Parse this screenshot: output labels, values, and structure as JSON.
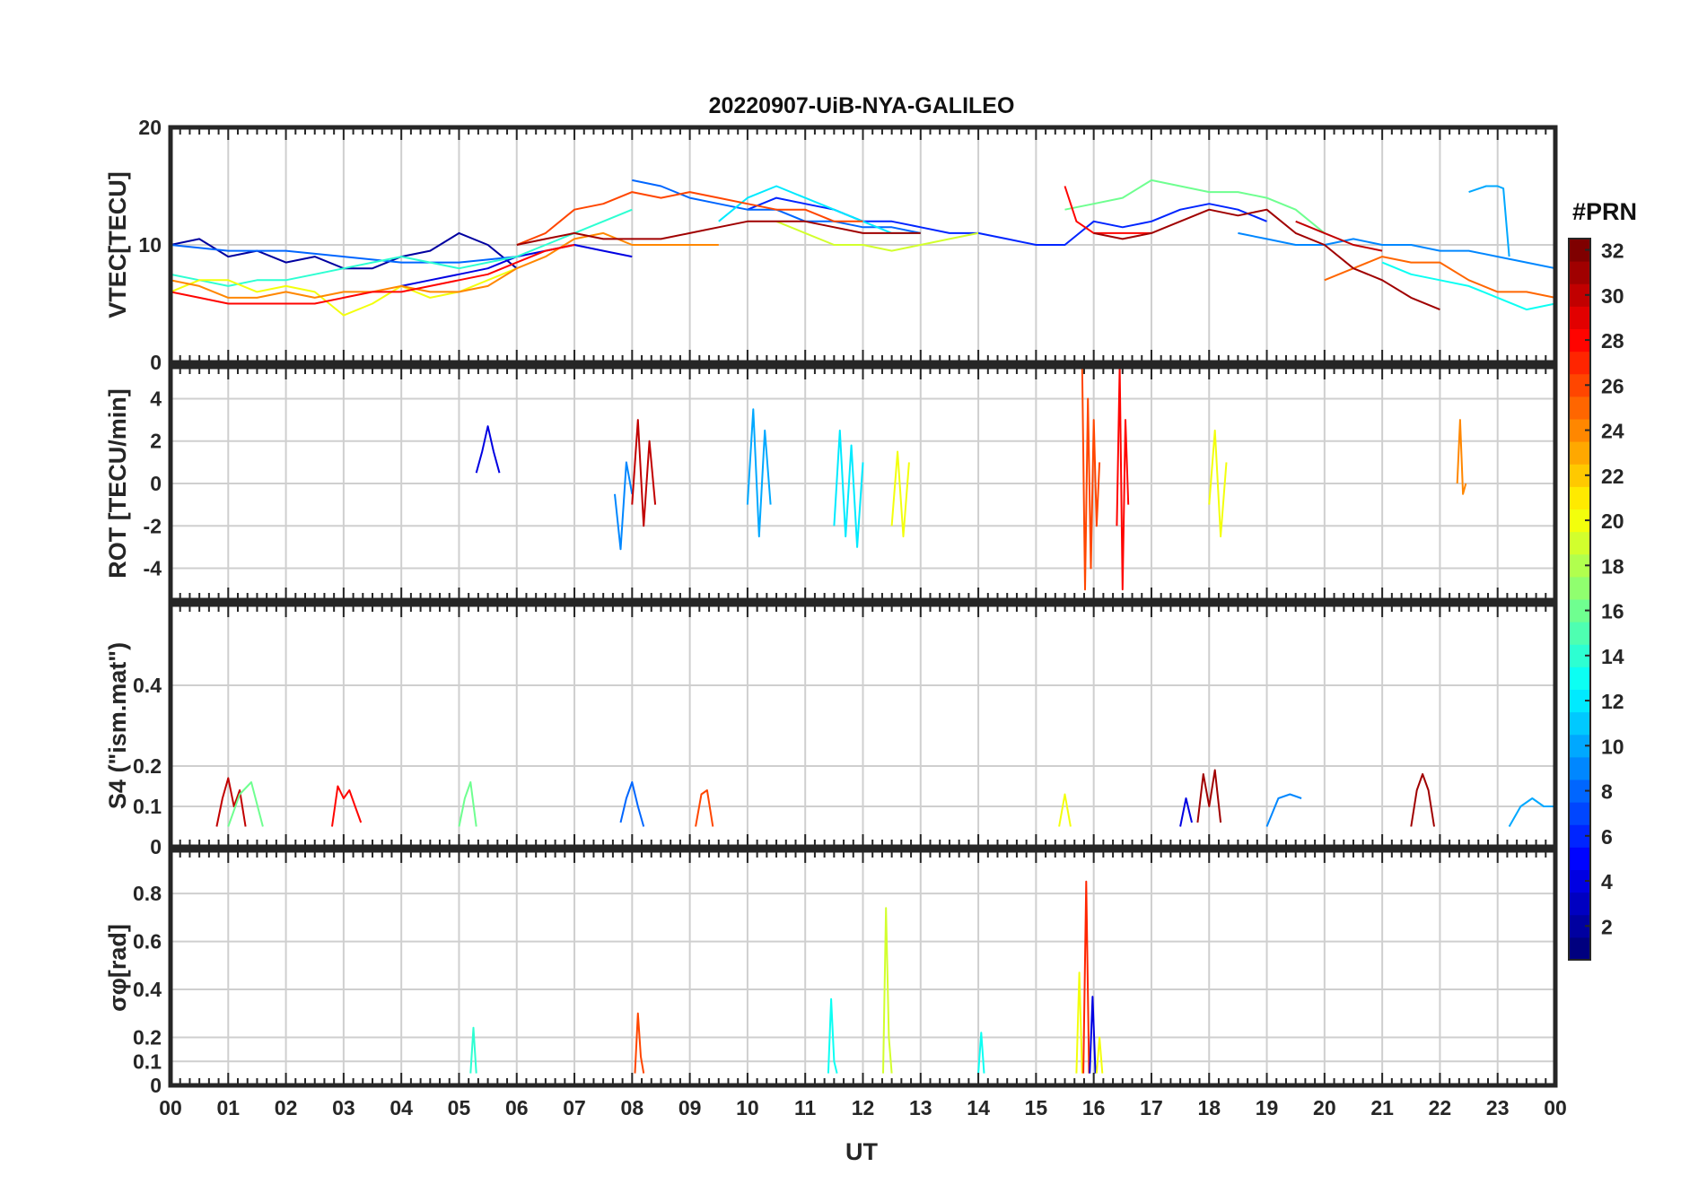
{
  "title": "20220907-UiB-NYA-GALILEO",
  "x_axis": {
    "label": "UT",
    "tick_labels": [
      "00",
      "01",
      "02",
      "03",
      "04",
      "05",
      "06",
      "07",
      "08",
      "09",
      "10",
      "11",
      "12",
      "13",
      "14",
      "15",
      "16",
      "17",
      "18",
      "19",
      "20",
      "21",
      "22",
      "23",
      "00"
    ]
  },
  "colorbar": {
    "title": "#PRN",
    "range": [
      1,
      32
    ],
    "tick_labels": [
      "2",
      "4",
      "6",
      "8",
      "10",
      "12",
      "14",
      "16",
      "18",
      "20",
      "22",
      "24",
      "26",
      "28",
      "30",
      "32"
    ],
    "colormap": "jet",
    "color_stops": [
      "#00007f",
      "#0000ff",
      "#007fff",
      "#00ffff",
      "#7fff7f",
      "#ffff00",
      "#ff7f00",
      "#ff0000",
      "#7f0000"
    ]
  },
  "chart_data": [
    {
      "type": "line",
      "panel": "vtec",
      "ylabel": "VTEC[TECU]",
      "ylim": [
        0,
        20
      ],
      "yticks": [
        0,
        10,
        20
      ],
      "grid": true,
      "xlim_hours": [
        0,
        24
      ],
      "series": [
        {
          "prn": 2,
          "x": [
            0,
            0.5,
            1,
            1.5,
            2,
            2.5,
            3,
            3.5,
            4,
            4.5,
            5,
            5.5,
            6
          ],
          "y": [
            10,
            10.5,
            9,
            9.5,
            8.5,
            9,
            8,
            8,
            9,
            9.5,
            11,
            10,
            8
          ]
        },
        {
          "prn": 4,
          "x": [
            4,
            4.5,
            5,
            5.5,
            6,
            6.5,
            7,
            7.5,
            8
          ],
          "y": [
            6.5,
            7,
            7.5,
            8,
            9,
            9.5,
            10,
            9.5,
            9
          ]
        },
        {
          "prn": 6,
          "x": [
            10,
            10.5,
            11,
            11.5,
            12,
            12.5,
            13,
            13.5,
            14,
            14.5,
            15,
            15.5,
            16,
            16.5,
            17,
            17.5,
            18,
            18.5,
            19
          ],
          "y": [
            13,
            14,
            13.5,
            13,
            12,
            12,
            11.5,
            11,
            11,
            10.5,
            10,
            10,
            12,
            11.5,
            12,
            13,
            13.5,
            13,
            12
          ]
        },
        {
          "prn": 8,
          "x": [
            0,
            1,
            2,
            3,
            4,
            5,
            6
          ],
          "y": [
            10,
            9.5,
            9.5,
            9,
            8.5,
            8.5,
            9
          ]
        },
        {
          "prn": 8,
          "x": [
            8,
            8.5,
            9,
            9.5,
            10,
            10.5,
            11,
            11.5,
            12,
            12.5,
            13
          ],
          "y": [
            15.5,
            15,
            14,
            13.5,
            13,
            13,
            12,
            12,
            11.5,
            11.5,
            11
          ]
        },
        {
          "prn": 9,
          "x": [
            18.5,
            19,
            19.5,
            20,
            20.5,
            21,
            21.5,
            22,
            22.5,
            23,
            23.5,
            24
          ],
          "y": [
            11,
            10.5,
            10,
            10,
            10.5,
            10,
            10,
            9.5,
            9.5,
            9,
            8.5,
            8
          ]
        },
        {
          "prn": 10,
          "x": [
            22.5,
            22.8,
            23,
            23.1,
            23.2
          ],
          "y": [
            14.5,
            15,
            15,
            14.8,
            9
          ]
        },
        {
          "prn": 12,
          "x": [
            9.5,
            10,
            10.5,
            11,
            11.5,
            12,
            12.5,
            13
          ],
          "y": [
            12,
            14,
            15,
            14,
            13,
            12,
            11,
            11
          ]
        },
        {
          "prn": 13,
          "x": [
            21,
            21.5,
            22,
            22.5,
            23,
            23.5,
            24
          ],
          "y": [
            8.5,
            7.5,
            7,
            6.5,
            5.5,
            4.5,
            5
          ]
        },
        {
          "prn": 14,
          "x": [
            0,
            0.5,
            1,
            1.5,
            2,
            2.5,
            3,
            3.5,
            4,
            4.5,
            5,
            5.5,
            6,
            6.5,
            7,
            7.5,
            8
          ],
          "y": [
            7.5,
            7,
            6.5,
            7,
            7,
            7.5,
            8,
            8.5,
            9,
            8.5,
            8,
            8.5,
            9,
            10,
            11,
            12,
            13
          ]
        },
        {
          "prn": 16,
          "x": [
            15.5,
            16,
            16.5,
            17,
            17.5,
            18,
            18.5,
            19,
            19.5,
            20
          ],
          "y": [
            13,
            13.5,
            14,
            15.5,
            15,
            14.5,
            14.5,
            14,
            13,
            11
          ]
        },
        {
          "prn": 19,
          "x": [
            10.5,
            11,
            11.5,
            12,
            12.5,
            13,
            13.5,
            14
          ],
          "y": [
            12,
            11,
            10,
            10,
            9.5,
            10,
            10.5,
            11
          ]
        },
        {
          "prn": 20,
          "x": [
            0,
            0.5,
            1,
            1.5,
            2,
            2.5,
            3,
            3.5,
            4,
            4.5,
            5,
            5.5,
            6
          ],
          "y": [
            6,
            7,
            7,
            6,
            6.5,
            6,
            4,
            5,
            6.5,
            5.5,
            6,
            7,
            8
          ]
        },
        {
          "prn": 24,
          "x": [
            0,
            0.5,
            1,
            1.5,
            2,
            2.5,
            3,
            3.5,
            4,
            4.5,
            5,
            5.5,
            6,
            6.5,
            7,
            7.5,
            8,
            8.5,
            9,
            9.5
          ],
          "y": [
            7,
            6.5,
            5.5,
            5.5,
            6,
            5.5,
            6,
            6,
            6.5,
            6,
            6,
            6.5,
            8,
            9,
            10.5,
            11,
            10,
            10,
            10,
            10
          ]
        },
        {
          "prn": 25,
          "x": [
            20,
            20.5,
            21,
            21.5,
            22,
            22.5,
            23,
            23.5,
            24
          ],
          "y": [
            7,
            8,
            9,
            8.5,
            8.5,
            7,
            6,
            6,
            5.5
          ]
        },
        {
          "prn": 26,
          "x": [
            6,
            6.5,
            7,
            7.5,
            8,
            8.5,
            9,
            9.5,
            10,
            10.5,
            11,
            11.5,
            12
          ],
          "y": [
            10,
            11,
            13,
            13.5,
            14.5,
            14,
            14.5,
            14,
            13.5,
            13,
            13,
            12,
            12
          ]
        },
        {
          "prn": 28,
          "x": [
            0,
            0.5,
            1,
            1.5,
            2,
            2.5,
            3,
            3.5,
            4,
            4.5,
            5,
            5.5,
            6,
            6.5,
            7
          ],
          "y": [
            6,
            5.5,
            5,
            5,
            5,
            5,
            5.5,
            6,
            6,
            6.5,
            7,
            7.5,
            8.5,
            9.5,
            10
          ]
        },
        {
          "prn": 28,
          "x": [
            15.5,
            15.7,
            16,
            16.5,
            17
          ],
          "y": [
            15,
            12,
            11,
            11,
            11
          ]
        },
        {
          "prn": 30,
          "x": [
            19.5,
            20,
            20.5,
            21
          ],
          "y": [
            12,
            11,
            10,
            9.5
          ]
        },
        {
          "prn": 31,
          "x": [
            6,
            6.5,
            7,
            7.5,
            8,
            8.5,
            9,
            9.5,
            10,
            10.5,
            11,
            11.5,
            12,
            12.5,
            13
          ],
          "y": [
            10,
            10.5,
            11,
            10.5,
            10.5,
            10.5,
            11,
            11.5,
            12,
            12,
            12,
            11.5,
            11,
            11,
            11
          ]
        },
        {
          "prn": 31,
          "x": [
            16,
            16.5,
            17,
            17.5,
            18,
            18.5,
            19,
            19.5,
            20,
            20.5,
            21,
            21.5,
            22
          ],
          "y": [
            11,
            10.5,
            11,
            12,
            13,
            12.5,
            13,
            11,
            10,
            8,
            7,
            5.5,
            4.5
          ]
        }
      ]
    },
    {
      "type": "line",
      "panel": "rot",
      "ylabel": "ROT [TECU/min]",
      "ylim": [
        -5.5,
        5.5
      ],
      "yticks": [
        -4,
        -2,
        0,
        2,
        4
      ],
      "grid": true,
      "xlim_hours": [
        0,
        24
      ],
      "series": [
        {
          "prn": 4,
          "x": [
            5.3,
            5.4,
            5.5,
            5.6,
            5.7
          ],
          "y": [
            0.5,
            1.5,
            2.7,
            1.5,
            0.5
          ]
        },
        {
          "prn": 9,
          "x": [
            7.7,
            7.8,
            7.9,
            8.0
          ],
          "y": [
            -0.5,
            -3.1,
            1,
            -0.5
          ]
        },
        {
          "prn": 10,
          "x": [
            10.0,
            10.1,
            10.2,
            10.3,
            10.4
          ],
          "y": [
            -1,
            3.5,
            -2.5,
            2.5,
            -1
          ]
        },
        {
          "prn": 12,
          "x": [
            11.5,
            11.6,
            11.7,
            11.8,
            11.9,
            12.0
          ],
          "y": [
            -2,
            2.5,
            -2.5,
            1.8,
            -3,
            1
          ]
        },
        {
          "prn": 20,
          "x": [
            12.5,
            12.6,
            12.7,
            12.8
          ],
          "y": [
            -2,
            1.5,
            -2.5,
            1
          ]
        },
        {
          "prn": 26,
          "x": [
            15.8,
            15.85,
            15.9,
            15.95,
            16.0,
            16.05,
            16.1
          ],
          "y": [
            5.5,
            -5,
            4,
            -4,
            3,
            -2,
            1
          ]
        },
        {
          "prn": 28,
          "x": [
            16.4,
            16.45,
            16.5,
            16.55,
            16.6
          ],
          "y": [
            -2,
            5.5,
            -5,
            3,
            -1
          ]
        },
        {
          "prn": 30,
          "x": [
            8.0,
            8.1,
            8.2,
            8.3,
            8.4
          ],
          "y": [
            -1,
            3,
            -2,
            2,
            -1
          ]
        },
        {
          "prn": 24,
          "x": [
            22.3,
            22.35,
            22.4,
            22.45
          ],
          "y": [
            0,
            3,
            -0.5,
            0
          ]
        },
        {
          "prn": 20,
          "x": [
            18.0,
            18.1,
            18.2,
            18.3
          ],
          "y": [
            -1,
            2.5,
            -2.5,
            1
          ]
        }
      ]
    },
    {
      "type": "line",
      "panel": "s4",
      "ylabel": "S4 (\"ism.mat\")",
      "ylim": [
        0,
        0.6
      ],
      "yticks": [
        0,
        0.1,
        0.2,
        0.4
      ],
      "grid": true,
      "xlim_hours": [
        0,
        24
      ],
      "series": [
        {
          "prn": 30,
          "x": [
            0.8,
            0.9,
            1.0,
            1.1,
            1.2,
            1.3
          ],
          "y": [
            0.05,
            0.12,
            0.17,
            0.1,
            0.14,
            0.05
          ]
        },
        {
          "prn": 16,
          "x": [
            1.0,
            1.2,
            1.4,
            1.6
          ],
          "y": [
            0.05,
            0.13,
            0.16,
            0.05
          ]
        },
        {
          "prn": 28,
          "x": [
            2.8,
            2.9,
            3.0,
            3.1,
            3.2,
            3.3
          ],
          "y": [
            0.05,
            0.15,
            0.12,
            0.14,
            0.1,
            0.06
          ]
        },
        {
          "prn": 16,
          "x": [
            5.0,
            5.1,
            5.2,
            5.3
          ],
          "y": [
            0.05,
            0.12,
            0.16,
            0.05
          ]
        },
        {
          "prn": 8,
          "x": [
            7.8,
            7.9,
            8.0,
            8.1,
            8.2
          ],
          "y": [
            0.06,
            0.12,
            0.16,
            0.1,
            0.05
          ]
        },
        {
          "prn": 26,
          "x": [
            9.1,
            9.2,
            9.3,
            9.4
          ],
          "y": [
            0.05,
            0.13,
            0.14,
            0.05
          ]
        },
        {
          "prn": 20,
          "x": [
            15.4,
            15.5,
            15.6
          ],
          "y": [
            0.05,
            0.13,
            0.05
          ]
        },
        {
          "prn": 4,
          "x": [
            17.5,
            17.6,
            17.7
          ],
          "y": [
            0.05,
            0.12,
            0.06
          ]
        },
        {
          "prn": 31,
          "x": [
            17.8,
            17.9,
            18.0,
            18.1,
            18.2
          ],
          "y": [
            0.06,
            0.18,
            0.1,
            0.19,
            0.06
          ]
        },
        {
          "prn": 9,
          "x": [
            19.0,
            19.2,
            19.4,
            19.6
          ],
          "y": [
            0.05,
            0.12,
            0.13,
            0.12
          ]
        },
        {
          "prn": 31,
          "x": [
            21.5,
            21.6,
            21.7,
            21.8,
            21.9
          ],
          "y": [
            0.05,
            0.14,
            0.18,
            0.14,
            0.05
          ]
        },
        {
          "prn": 10,
          "x": [
            23.2,
            23.4,
            23.6,
            23.8,
            24.0
          ],
          "y": [
            0.05,
            0.1,
            0.12,
            0.1,
            0.1
          ]
        }
      ]
    },
    {
      "type": "line",
      "panel": "sigma_phi",
      "ylabel": "σφ[rad]",
      "ylim": [
        0,
        0.98
      ],
      "yticks": [
        0,
        0.1,
        0.2,
        0.4,
        0.6,
        0.8
      ],
      "grid": true,
      "xlim_hours": [
        0,
        24
      ],
      "series": [
        {
          "prn": 26,
          "x": [
            8.05,
            8.1,
            8.15,
            8.2
          ],
          "y": [
            0.05,
            0.3,
            0.12,
            0.05
          ]
        },
        {
          "prn": 13,
          "x": [
            11.4,
            11.45,
            11.5,
            11.55
          ],
          "y": [
            0.05,
            0.36,
            0.1,
            0.05
          ]
        },
        {
          "prn": 19,
          "x": [
            12.35,
            12.4,
            12.45,
            12.5
          ],
          "y": [
            0.05,
            0.74,
            0.2,
            0.05
          ]
        },
        {
          "prn": 14,
          "x": [
            5.2,
            5.25,
            5.3
          ],
          "y": [
            0.05,
            0.24,
            0.05
          ]
        },
        {
          "prn": 13,
          "x": [
            14.0,
            14.05,
            14.1
          ],
          "y": [
            0.05,
            0.22,
            0.05
          ]
        },
        {
          "prn": 20,
          "x": [
            15.7,
            15.75,
            15.8
          ],
          "y": [
            0.05,
            0.47,
            0.05
          ]
        },
        {
          "prn": 27,
          "x": [
            15.82,
            15.87,
            15.92
          ],
          "y": [
            0.05,
            0.85,
            0.05
          ]
        },
        {
          "prn": 4,
          "x": [
            15.93,
            15.98,
            16.03
          ],
          "y": [
            0.05,
            0.37,
            0.05
          ]
        },
        {
          "prn": 20,
          "x": [
            16.05,
            16.1,
            16.15
          ],
          "y": [
            0.05,
            0.2,
            0.05
          ]
        }
      ]
    }
  ]
}
